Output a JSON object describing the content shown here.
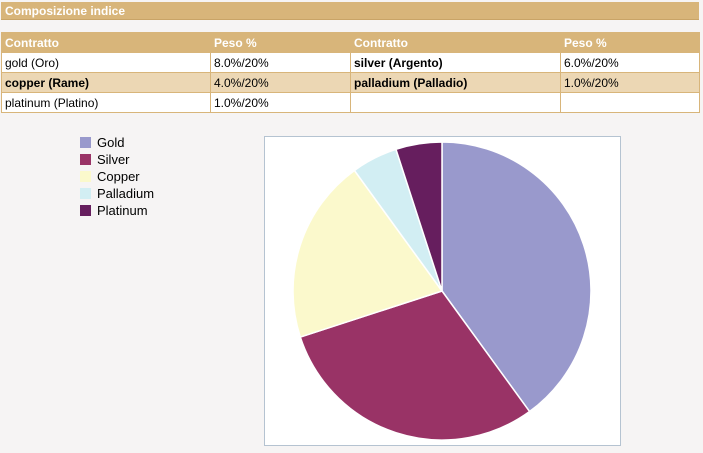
{
  "section": {
    "title": "Composizione indice"
  },
  "table": {
    "headers": [
      "Contratto",
      "Peso %",
      "Contratto",
      "Peso %"
    ],
    "rows": [
      [
        "gold (Oro)",
        "8.0%/20%",
        "silver (Argento)",
        "6.0%/20%"
      ],
      [
        "copper (Rame)",
        "4.0%/20%",
        "palladium (Palladio)",
        "1.0%/20%"
      ],
      [
        "platinum (Platino)",
        "1.0%/20%",
        "",
        ""
      ]
    ]
  },
  "chart_data": {
    "type": "pie",
    "title": "",
    "categories": [
      "Gold",
      "Silver",
      "Copper",
      "Palladium",
      "Platinum"
    ],
    "values": [
      8.0,
      6.0,
      4.0,
      1.0,
      1.0
    ],
    "colors": [
      "#9999cc",
      "#993366",
      "#fbf9cc",
      "#d2eef3",
      "#661e5e"
    ],
    "legend": "top-left"
  }
}
